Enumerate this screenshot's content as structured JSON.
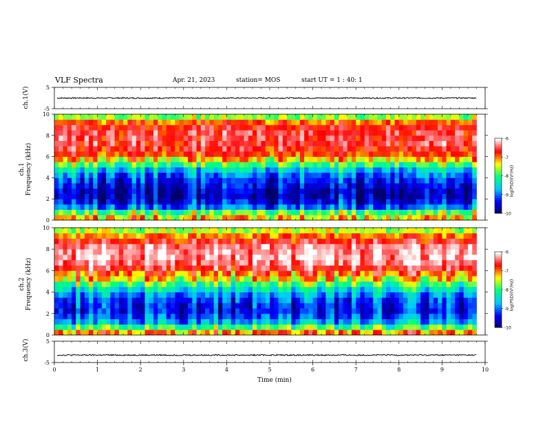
{
  "header": {
    "title": "VLF Spectra",
    "date": "Apr. 21, 2023",
    "station": "station= MOS",
    "start": "start  UT =   1 : 40: 1"
  },
  "labels": {
    "ch1_volt": "ch.1(V)",
    "ch1_freq": "ch.1\nFrequency (kHz)",
    "ch2_freq": "ch.2\nFrequency (kHz)",
    "ch3_volt": "ch.3(V)",
    "xlabel": "Time (min)",
    "cbar_label": "log(PSD)(V²/Hz)"
  },
  "colors": {
    "colormap": [
      "#000066",
      "#0000ff",
      "#00c8ff",
      "#00ff80",
      "#ffff00",
      "#ff0000",
      "#ffffff"
    ]
  },
  "chart_data": [
    {
      "type": "line",
      "name": "waveform-ch1",
      "ylabel": "ch.1(V)",
      "ylim": [
        -5,
        5
      ],
      "yticks": [
        5,
        -5
      ],
      "xlim": [
        0,
        10
      ],
      "x": [
        0,
        1,
        2,
        3,
        4,
        5,
        6,
        7,
        8,
        9,
        9.8
      ],
      "y": [
        0,
        0,
        0,
        0,
        0,
        0,
        0,
        0,
        0,
        0,
        0
      ]
    },
    {
      "type": "heatmap",
      "name": "spectrogram-ch1",
      "ylabel": "ch.1 Frequency (kHz)",
      "ylim": [
        0,
        10
      ],
      "yticks": [
        0,
        2,
        4,
        6,
        8,
        10
      ],
      "xlim": [
        0,
        10
      ],
      "data_end_min": 9.8,
      "colorbar": {
        "min": -10,
        "max": -6,
        "ticks": [
          -6,
          -7,
          -8,
          -9,
          -10
        ],
        "label": "log(PSD)(V²/Hz)"
      },
      "freq_khz": [
        0,
        0.5,
        1,
        1.5,
        2,
        2.5,
        3,
        3.5,
        4,
        4.5,
        5,
        5.5,
        6,
        6.5,
        7,
        7.5,
        8,
        8.5,
        9,
        9.5,
        10
      ],
      "mean_log_psd": [
        -7.2,
        -7.8,
        -8.9,
        -9.4,
        -9.6,
        -9.6,
        -9.4,
        -9.2,
        -8.9,
        -8.5,
        -7.9,
        -7.2,
        -6.8,
        -6.6,
        -6.5,
        -6.5,
        -6.5,
        -6.6,
        -6.9,
        -7.6,
        -8.2
      ]
    },
    {
      "type": "heatmap",
      "name": "spectrogram-ch2",
      "ylabel": "ch.2 Frequency (kHz)",
      "ylim": [
        0,
        10
      ],
      "yticks": [
        0,
        2,
        4,
        6,
        8,
        10
      ],
      "xlim": [
        0,
        10
      ],
      "data_end_min": 9.8,
      "colorbar": {
        "min": -10,
        "max": -6,
        "ticks": [
          -6,
          -7,
          -8,
          -9,
          -10
        ],
        "label": "log(PSD)(V²/Hz)"
      },
      "freq_khz": [
        0,
        0.5,
        1,
        1.5,
        2,
        2.5,
        3,
        3.5,
        4,
        4.5,
        5,
        5.5,
        6,
        6.5,
        7,
        7.5,
        8,
        8.5,
        9,
        9.5,
        10
      ],
      "mean_log_psd": [
        -7.0,
        -7.9,
        -8.7,
        -9.1,
        -9.3,
        -9.3,
        -9.1,
        -8.8,
        -8.4,
        -7.9,
        -7.3,
        -6.9,
        -6.5,
        -6.3,
        -6.2,
        -6.2,
        -6.3,
        -6.6,
        -7.0,
        -7.5,
        -8.0
      ]
    },
    {
      "type": "line",
      "name": "waveform-ch3",
      "ylabel": "ch.3(V)",
      "ylim": [
        -5,
        5
      ],
      "yticks": [
        5,
        -5
      ],
      "xlim": [
        0,
        10
      ],
      "x": [
        0,
        1,
        2,
        3,
        4,
        5,
        6,
        7,
        8,
        9,
        9.8
      ],
      "y": [
        -1.5,
        -1.5,
        -1.5,
        -1.5,
        -1.5,
        -1.5,
        -1.5,
        -1.5,
        -1.5,
        -1.5,
        -1.5
      ]
    }
  ],
  "xaxis": {
    "label": "Time (min)",
    "ticks": [
      0,
      1,
      2,
      3,
      4,
      5,
      6,
      7,
      8,
      9,
      10
    ],
    "lim": [
      0,
      10
    ]
  }
}
